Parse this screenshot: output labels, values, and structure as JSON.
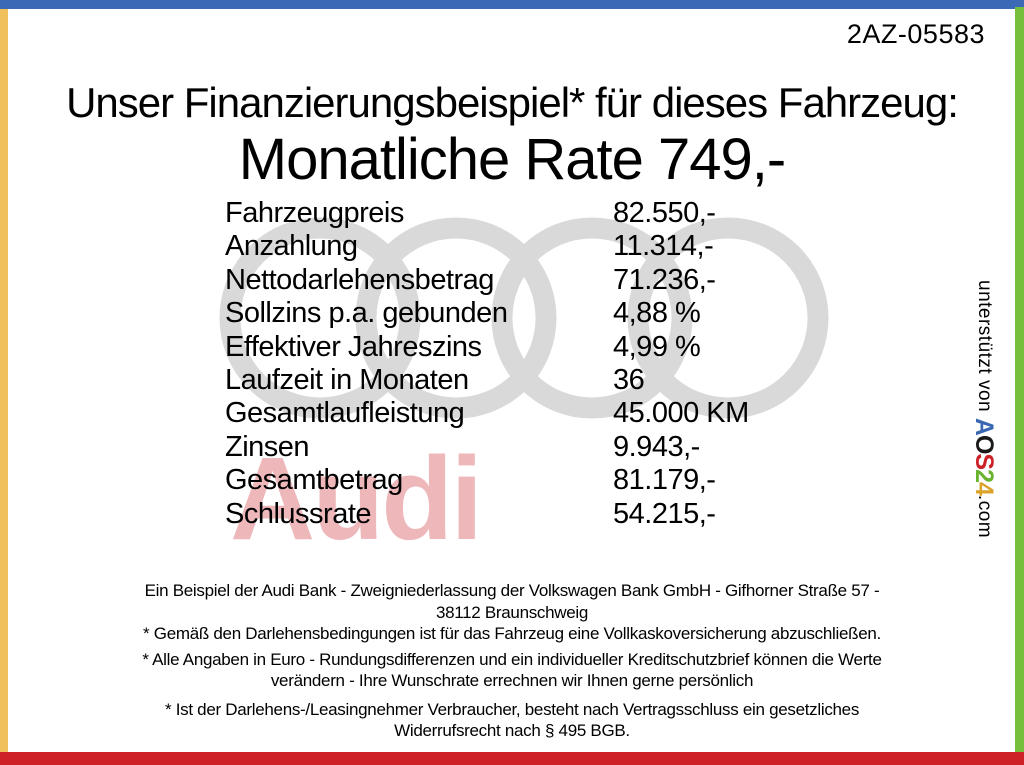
{
  "frame": {
    "top_color": "#3b69b5",
    "left_color": "#f0c05a",
    "right_color": "#76bf3d",
    "bottom_color": "#cc2127"
  },
  "header": {
    "ref_number": "2AZ-05583",
    "title": "Unser Finanzierungsbeispiel* für dieses Fahrzeug:",
    "subtitle": "Monatliche Rate 749,-"
  },
  "finance_table": {
    "rows": [
      {
        "label": "Fahrzeugpreis",
        "value": "82.550,-"
      },
      {
        "label": "Anzahlung",
        "value": "11.314,-"
      },
      {
        "label": "Nettodarlehensbetrag",
        "value": "71.236,-"
      },
      {
        "label": "Sollzins p.a. gebunden",
        "value": "4,88 %"
      },
      {
        "label": "Effektiver Jahreszins",
        "value": "4,99 %"
      },
      {
        "label": "Laufzeit in Monaten",
        "value": "36"
      },
      {
        "label": "Gesamtlaufleistung",
        "value": "45.000 KM"
      },
      {
        "label": "Zinsen",
        "value": "9.943,-"
      },
      {
        "label": "Gesamtbetrag",
        "value": "81.179,-"
      },
      {
        "label": "Schlussrate",
        "value": "54.215,-"
      }
    ]
  },
  "watermark": {
    "brand_text": "Audi",
    "rings_color": "#d9d9d9",
    "text_color": "#eeb7ba"
  },
  "sidebar_vertical": {
    "prefix": "unterstützt von ",
    "logo_letters": [
      {
        "char": "A",
        "color": "#3a67b1"
      },
      {
        "char": "O",
        "color": "#1a1a1a"
      },
      {
        "char": "S",
        "color": "#cc2027"
      },
      {
        "char": "2",
        "color": "#68b42e"
      },
      {
        "char": "4",
        "color": "#dca32a"
      }
    ],
    "suffix": ".com"
  },
  "footer": {
    "paragraphs": [
      [
        "Ein Beispiel der Audi Bank -  Zweigniederlassung der Volkswagen Bank GmbH - Gifhorner Straße 57 -",
        "38112 Braunschweig"
      ],
      [
        "* Gemäß den Darlehensbedingungen ist für das Fahrzeug eine Vollkaskoversicherung abzuschließen."
      ],
      [
        "* Alle Angaben in Euro - Rundungsdifferenzen und ein individueller Kreditschutzbrief können die Werte",
        "verändern - Ihre Wunschrate errechnen wir Ihnen gerne persönlich"
      ],
      [
        "* Ist der Darlehens-/Leasingnehmer Verbraucher, besteht nach Vertragsschluss ein gesetzliches",
        "Widerrufsrecht nach § 495 BGB."
      ]
    ]
  }
}
